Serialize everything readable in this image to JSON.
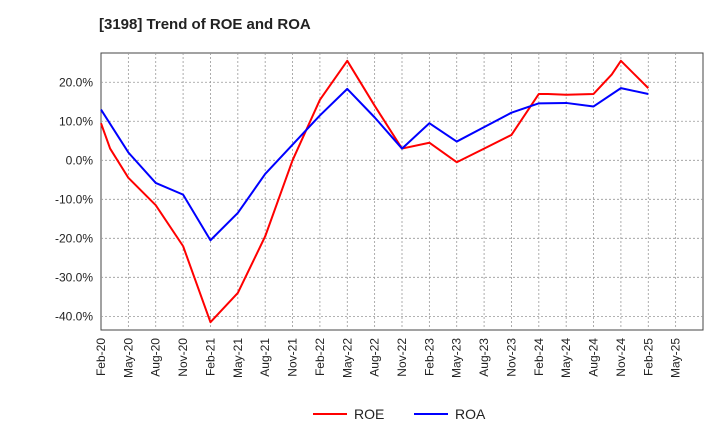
{
  "chart_data": {
    "type": "line",
    "title": "[3198]  Trend of ROE and ROA",
    "xlabel": "",
    "ylabel": "",
    "categories": [
      "Feb-20",
      "May-20",
      "Aug-20",
      "Nov-20",
      "Feb-21",
      "May-21",
      "Aug-21",
      "Nov-21",
      "Feb-22",
      "May-22",
      "Aug-22",
      "Nov-22",
      "Feb-23",
      "May-23",
      "Aug-23",
      "Nov-23",
      "Feb-24",
      "May-24",
      "Aug-24",
      "Nov-24",
      "Feb-25",
      "May-25"
    ],
    "y_ticks": [
      "20.0%",
      "10.0%",
      "0.0%",
      "-10.0%",
      "-20.0%",
      "-30.0%",
      "-40.0%"
    ],
    "ylim": [
      -43.5,
      27.5
    ],
    "grid": true,
    "legend_position": "bottom",
    "series": [
      {
        "name": "ROE",
        "color": "#ff0000",
        "x": [
          0,
          0.333,
          1,
          2,
          3,
          4,
          5,
          6,
          7,
          8,
          9,
          10,
          11,
          12,
          13,
          14,
          15,
          16,
          16.333,
          17,
          18,
          18.667,
          19,
          20
        ],
        "values": [
          9.5,
          3.0,
          -4.5,
          -11.5,
          -22.0,
          -41.5,
          -34.0,
          -19.5,
          0.0,
          15.5,
          25.5,
          14.0,
          3.0,
          4.5,
          -0.5,
          3.0,
          6.5,
          17.0,
          17.0,
          16.8,
          17.0,
          22.0,
          25.5,
          18.5
        ]
      },
      {
        "name": "ROA",
        "color": "#0000ff",
        "x": [
          0,
          1,
          2,
          3,
          4,
          5,
          6,
          7,
          8,
          9,
          10,
          11,
          12,
          13,
          14,
          15,
          16,
          17,
          18,
          19,
          20
        ],
        "values": [
          13.0,
          2.0,
          -5.8,
          -8.8,
          -20.5,
          -13.5,
          -3.5,
          4.0,
          11.5,
          18.3,
          11.0,
          3.0,
          9.5,
          4.8,
          8.5,
          12.2,
          14.6,
          14.7,
          13.8,
          18.5,
          17.0
        ]
      }
    ]
  }
}
